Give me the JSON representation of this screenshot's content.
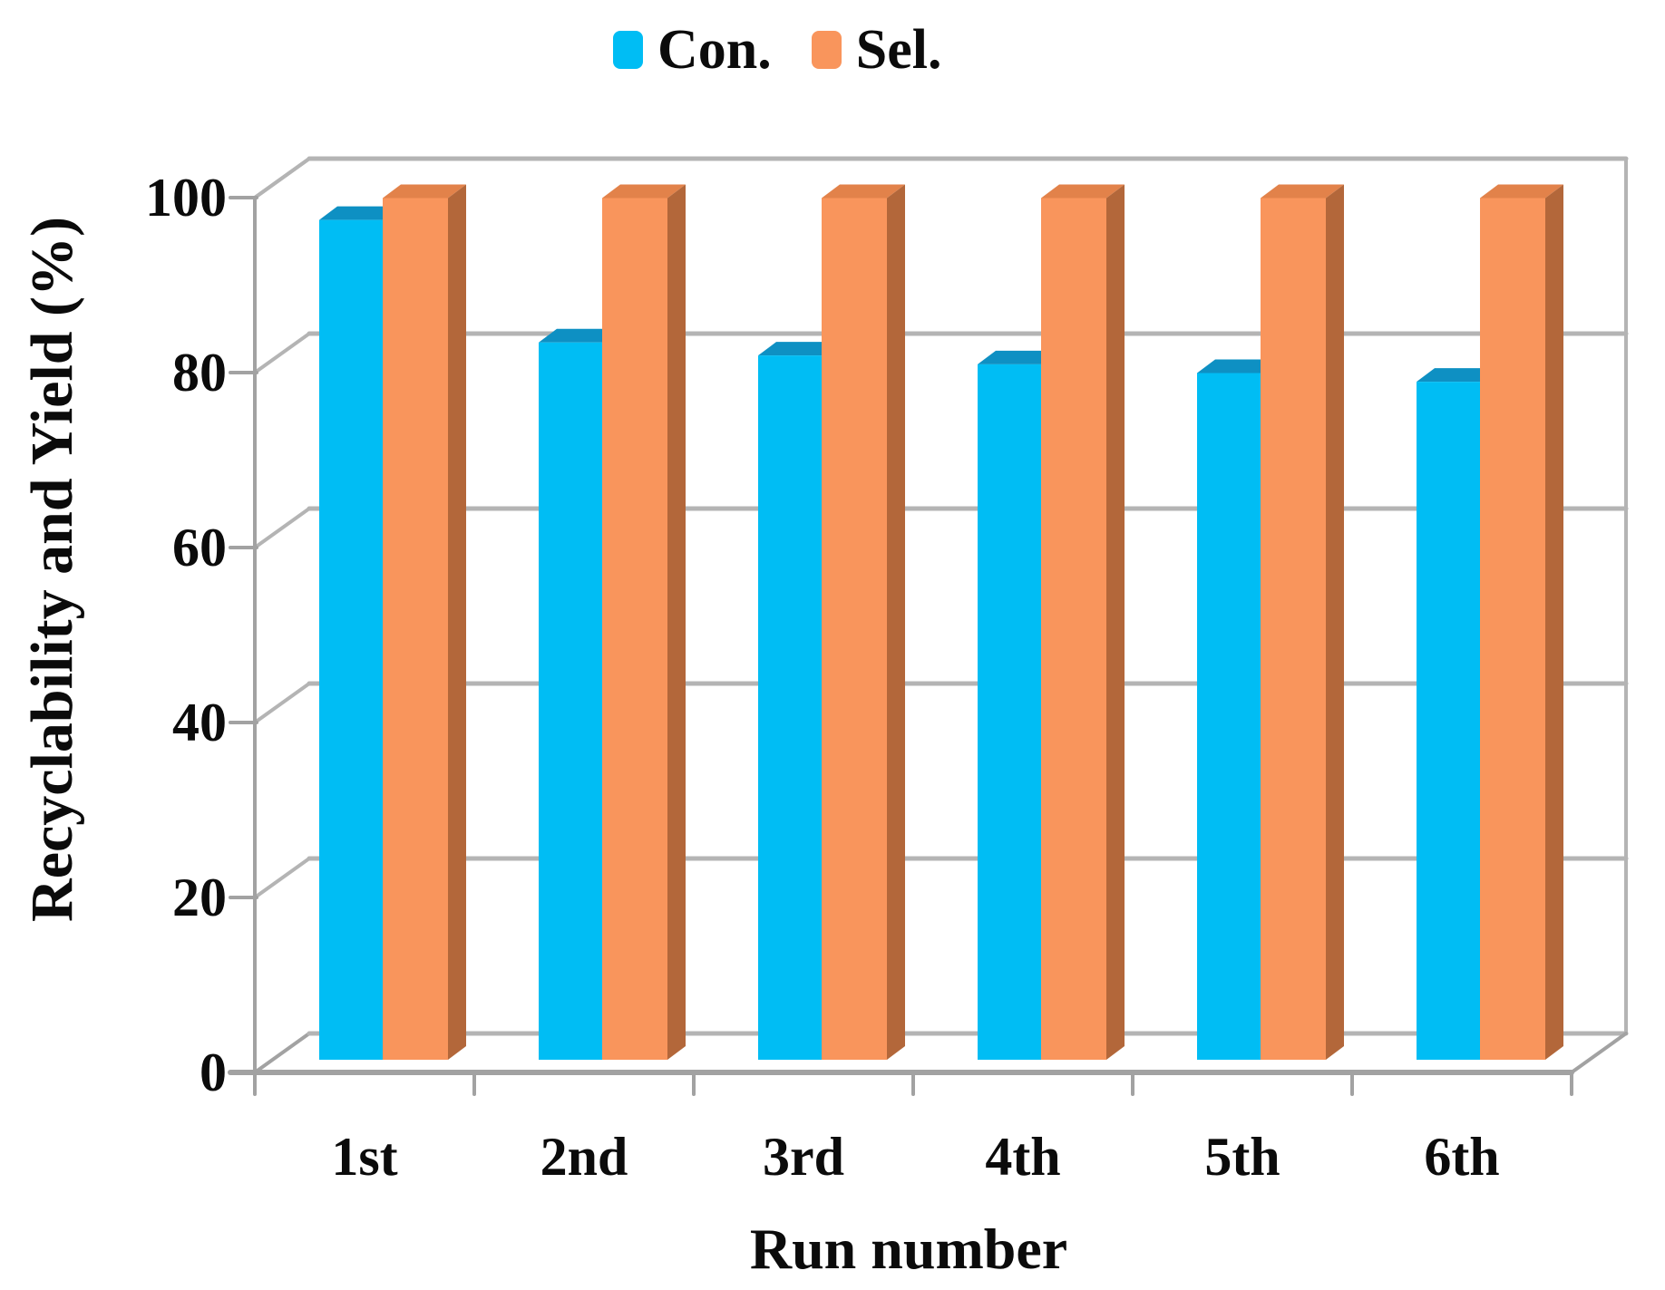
{
  "legend": {
    "items": [
      {
        "label": "Con."
      },
      {
        "label": "Sel."
      }
    ]
  },
  "chart_data": {
    "type": "bar",
    "style": "3d-clustered-column",
    "categories": [
      "1st",
      "2nd",
      "3rd",
      "4th",
      "5th",
      "6th"
    ],
    "series": [
      {
        "name": "Con.",
        "values": [
          96,
          82,
          80.5,
          79.5,
          78.5,
          77.5
        ],
        "color": "#00bdf4",
        "top_color": "#0e90c3",
        "side_color": "#027ba6"
      },
      {
        "name": "Sel.",
        "values": [
          98.5,
          98.5,
          98.5,
          98.5,
          98.5,
          98.5
        ],
        "color": "#f9955c",
        "top_color": "#e2824a",
        "side_color": "#b3673a"
      }
    ],
    "title": "",
    "xlabel": "Run number",
    "ylabel": "Recyclability and Yield (%)",
    "ylim": [
      0,
      100
    ],
    "yticks": [
      0,
      20,
      40,
      60,
      80,
      100
    ],
    "grid": true,
    "legend_position": "top-center",
    "gridline_color": "#b4b4b4",
    "axis_color": "#a2a2a2",
    "text_color": "#0b0b0b"
  }
}
